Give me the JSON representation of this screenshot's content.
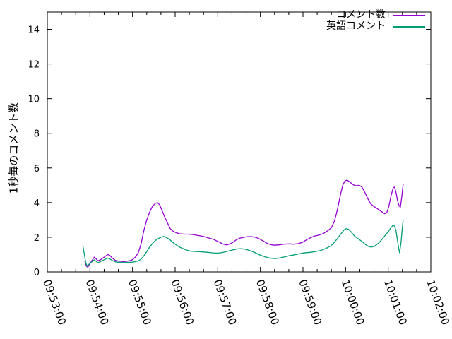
{
  "chart_data": {
    "type": "line",
    "title": "",
    "xlabel": "",
    "ylabel": "1秒毎のコメント数",
    "background": "#ffffff",
    "axis_color": "#000000",
    "grid": false,
    "legend": {
      "position": "top-right-inside",
      "entries": [
        "コメント数",
        "英語コメント"
      ]
    },
    "x_axis": {
      "start": "09:53:00",
      "end": "10:02:00",
      "major_tick_interval_seconds": 60,
      "minor_tick_interval_seconds": 20,
      "tick_labels": [
        "09:53:00",
        "09:54:00",
        "09:55:00",
        "09:56:00",
        "09:57:00",
        "09:58:00",
        "09:59:00",
        "10:00:00",
        "10:01:00",
        "10:02:00"
      ]
    },
    "y_axis": {
      "min": 0,
      "max": 15,
      "tick_step": 2,
      "tick_labels": [
        "0",
        "2",
        "4",
        "6",
        "8",
        "10",
        "12",
        "14"
      ]
    },
    "x_unit": "seconds_after_09:53:00",
    "series": [
      {
        "name": "コメント数",
        "color": "#9400d3",
        "points": [
          [
            53,
            0.6
          ],
          [
            55,
            0.33
          ],
          [
            57,
            0.27
          ],
          [
            59,
            0.4
          ],
          [
            62,
            0.6
          ],
          [
            66,
            0.85
          ],
          [
            69,
            0.74
          ],
          [
            71,
            0.64
          ],
          [
            75,
            0.7
          ],
          [
            80,
            0.85
          ],
          [
            85,
            1.0
          ],
          [
            88,
            0.95
          ],
          [
            92,
            0.78
          ],
          [
            96,
            0.66
          ],
          [
            101,
            0.62
          ],
          [
            107,
            0.6
          ],
          [
            113,
            0.62
          ],
          [
            119,
            0.68
          ],
          [
            124,
            0.85
          ],
          [
            128,
            1.1
          ],
          [
            132,
            1.6
          ],
          [
            136,
            2.4
          ],
          [
            140,
            3.0
          ],
          [
            144,
            3.45
          ],
          [
            148,
            3.78
          ],
          [
            152,
            3.95
          ],
          [
            155,
            4.0
          ],
          [
            158,
            3.88
          ],
          [
            161,
            3.6
          ],
          [
            165,
            3.2
          ],
          [
            169,
            2.85
          ],
          [
            173,
            2.5
          ],
          [
            177,
            2.35
          ],
          [
            181,
            2.27
          ],
          [
            186,
            2.2
          ],
          [
            192,
            2.18
          ],
          [
            198,
            2.18
          ],
          [
            204,
            2.16
          ],
          [
            210,
            2.12
          ],
          [
            216,
            2.08
          ],
          [
            222,
            2.02
          ],
          [
            228,
            1.95
          ],
          [
            234,
            1.88
          ],
          [
            239,
            1.78
          ],
          [
            244,
            1.68
          ],
          [
            248,
            1.6
          ],
          [
            252,
            1.56
          ],
          [
            256,
            1.6
          ],
          [
            261,
            1.7
          ],
          [
            266,
            1.85
          ],
          [
            271,
            1.95
          ],
          [
            277,
            2.0
          ],
          [
            283,
            2.04
          ],
          [
            289,
            2.03
          ],
          [
            294,
            1.99
          ],
          [
            299,
            1.9
          ],
          [
            305,
            1.76
          ],
          [
            310,
            1.64
          ],
          [
            315,
            1.57
          ],
          [
            320,
            1.54
          ],
          [
            326,
            1.56
          ],
          [
            333,
            1.6
          ],
          [
            340,
            1.62
          ],
          [
            347,
            1.6
          ],
          [
            353,
            1.63
          ],
          [
            359,
            1.7
          ],
          [
            365,
            1.85
          ],
          [
            371,
            1.98
          ],
          [
            377,
            2.08
          ],
          [
            383,
            2.13
          ],
          [
            389,
            2.22
          ],
          [
            395,
            2.38
          ],
          [
            400,
            2.55
          ],
          [
            404,
            2.9
          ],
          [
            407,
            3.35
          ],
          [
            410,
            3.9
          ],
          [
            413,
            4.5
          ],
          [
            416,
            5.0
          ],
          [
            419,
            5.25
          ],
          [
            422,
            5.3
          ],
          [
            425,
            5.22
          ],
          [
            428,
            5.12
          ],
          [
            431,
            5.02
          ],
          [
            435,
            4.97
          ],
          [
            439,
            5.0
          ],
          [
            443,
            4.9
          ],
          [
            447,
            4.6
          ],
          [
            451,
            4.25
          ],
          [
            455,
            3.95
          ],
          [
            459,
            3.8
          ],
          [
            464,
            3.67
          ],
          [
            468,
            3.55
          ],
          [
            472,
            3.45
          ],
          [
            475,
            3.36
          ],
          [
            478,
            3.42
          ],
          [
            481,
            3.8
          ],
          [
            484,
            4.4
          ],
          [
            487,
            4.85
          ],
          [
            489,
            4.9
          ],
          [
            491,
            4.6
          ],
          [
            493,
            4.15
          ],
          [
            495,
            3.85
          ],
          [
            497,
            3.72
          ],
          [
            499,
            4.3
          ],
          [
            501,
            5.05
          ]
        ]
      },
      {
        "name": "英語コメント",
        "color": "#009e73",
        "points": [
          [
            50,
            1.5
          ],
          [
            52,
            1.05
          ],
          [
            54,
            0.55
          ],
          [
            56,
            0.33
          ],
          [
            58,
            0.42
          ],
          [
            62,
            0.55
          ],
          [
            66,
            0.7
          ],
          [
            69,
            0.6
          ],
          [
            71,
            0.53
          ],
          [
            75,
            0.6
          ],
          [
            80,
            0.7
          ],
          [
            85,
            0.8
          ],
          [
            88,
            0.75
          ],
          [
            92,
            0.65
          ],
          [
            96,
            0.58
          ],
          [
            101,
            0.55
          ],
          [
            107,
            0.54
          ],
          [
            113,
            0.55
          ],
          [
            119,
            0.56
          ],
          [
            124,
            0.59
          ],
          [
            128,
            0.63
          ],
          [
            132,
            0.73
          ],
          [
            136,
            0.93
          ],
          [
            140,
            1.18
          ],
          [
            144,
            1.43
          ],
          [
            148,
            1.64
          ],
          [
            152,
            1.8
          ],
          [
            156,
            1.92
          ],
          [
            160,
            2.0
          ],
          [
            164,
            2.05
          ],
          [
            168,
            1.98
          ],
          [
            172,
            1.88
          ],
          [
            176,
            1.73
          ],
          [
            180,
            1.6
          ],
          [
            185,
            1.46
          ],
          [
            190,
            1.36
          ],
          [
            196,
            1.26
          ],
          [
            202,
            1.2
          ],
          [
            208,
            1.18
          ],
          [
            214,
            1.17
          ],
          [
            220,
            1.15
          ],
          [
            226,
            1.13
          ],
          [
            232,
            1.1
          ],
          [
            238,
            1.08
          ],
          [
            244,
            1.1
          ],
          [
            250,
            1.15
          ],
          [
            256,
            1.22
          ],
          [
            262,
            1.28
          ],
          [
            268,
            1.33
          ],
          [
            274,
            1.34
          ],
          [
            280,
            1.3
          ],
          [
            286,
            1.22
          ],
          [
            292,
            1.12
          ],
          [
            298,
            1.0
          ],
          [
            304,
            0.9
          ],
          [
            310,
            0.83
          ],
          [
            316,
            0.78
          ],
          [
            322,
            0.77
          ],
          [
            328,
            0.81
          ],
          [
            334,
            0.87
          ],
          [
            340,
            0.93
          ],
          [
            346,
            0.97
          ],
          [
            352,
            1.02
          ],
          [
            358,
            1.07
          ],
          [
            364,
            1.11
          ],
          [
            370,
            1.13
          ],
          [
            376,
            1.16
          ],
          [
            382,
            1.21
          ],
          [
            388,
            1.28
          ],
          [
            394,
            1.39
          ],
          [
            399,
            1.5
          ],
          [
            403,
            1.65
          ],
          [
            407,
            1.85
          ],
          [
            411,
            2.07
          ],
          [
            415,
            2.28
          ],
          [
            418,
            2.42
          ],
          [
            421,
            2.5
          ],
          [
            424,
            2.46
          ],
          [
            428,
            2.3
          ],
          [
            432,
            2.1
          ],
          [
            436,
            1.96
          ],
          [
            440,
            1.85
          ],
          [
            444,
            1.72
          ],
          [
            448,
            1.58
          ],
          [
            452,
            1.48
          ],
          [
            456,
            1.43
          ],
          [
            460,
            1.47
          ],
          [
            464,
            1.58
          ],
          [
            468,
            1.73
          ],
          [
            472,
            1.92
          ],
          [
            476,
            2.12
          ],
          [
            480,
            2.32
          ],
          [
            484,
            2.56
          ],
          [
            487,
            2.7
          ],
          [
            489,
            2.64
          ],
          [
            491,
            2.38
          ],
          [
            493,
            1.85
          ],
          [
            495,
            1.3
          ],
          [
            496,
            1.1
          ],
          [
            498,
            1.7
          ],
          [
            500,
            2.6
          ],
          [
            501,
            3.0
          ]
        ]
      }
    ]
  }
}
